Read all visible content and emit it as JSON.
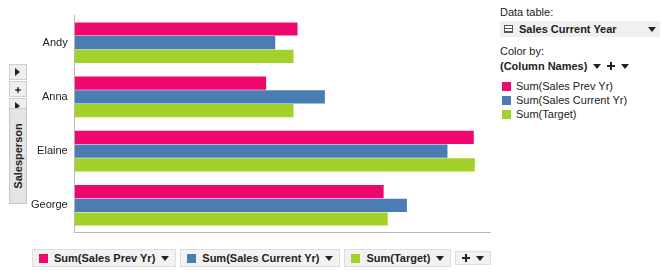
{
  "chart_data": {
    "type": "bar",
    "orientation": "horizontal",
    "categories": [
      "Andy",
      "Anna",
      "Elaine",
      "George"
    ],
    "series": [
      {
        "name": "Sum(Sales Prev Yr)",
        "color": "#f0076d",
        "values": [
          220,
          189,
          394,
          305
        ]
      },
      {
        "name": "Sum(Sales Current Yr)",
        "color": "#4a7db4",
        "values": [
          198,
          247,
          368,
          328
        ]
      },
      {
        "name": "Sum(Target)",
        "color": "#a2d12a",
        "values": [
          216,
          216,
          395,
          309
        ]
      }
    ],
    "xlim": [
      0,
      410
    ],
    "ylabel": "Salesperson",
    "tick_labels": "y",
    "grid": false,
    "legend": "right"
  },
  "panel": {
    "data_table_label": "Data table:",
    "data_table": "Sales Current Year",
    "color_by_label": "Color by:",
    "color_by": "(Column Names)"
  }
}
